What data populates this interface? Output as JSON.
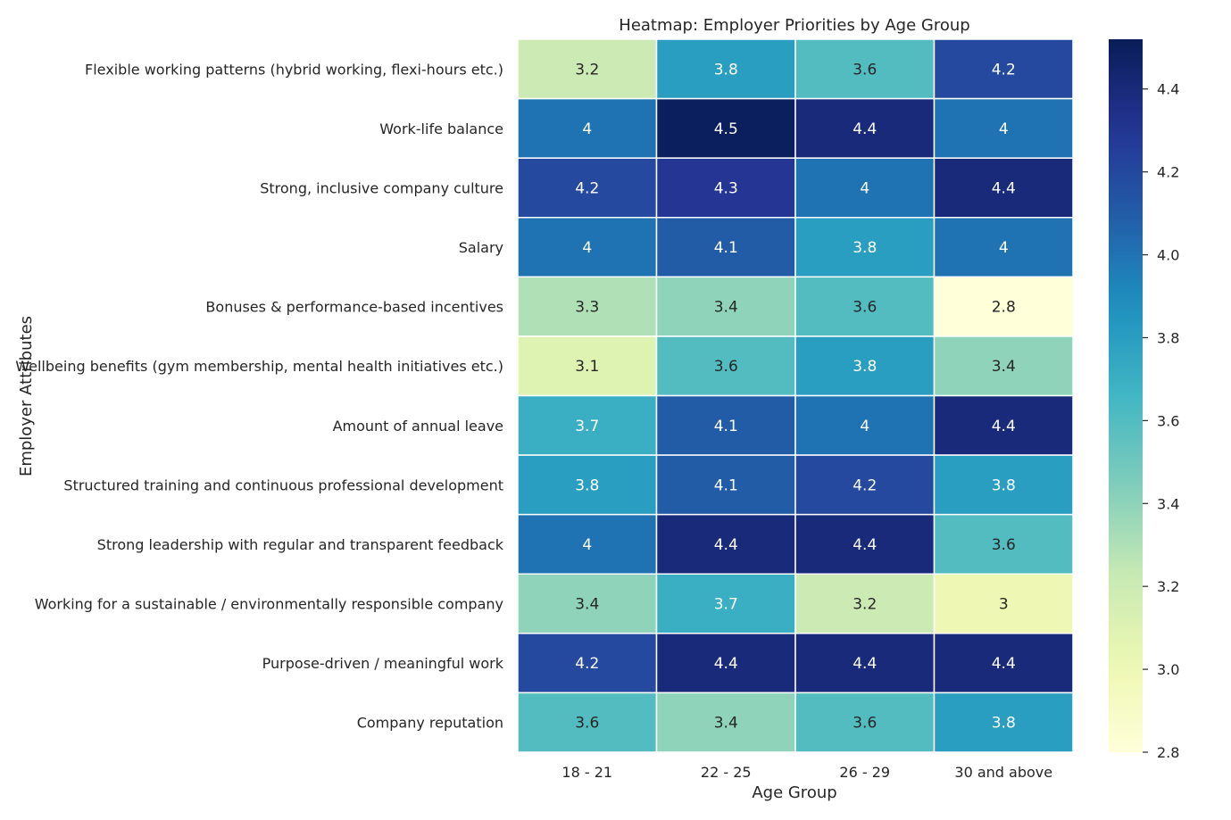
{
  "chart_data": {
    "type": "heatmap",
    "title": "Heatmap: Employer Priorities by Age Group",
    "xlabel": "Age Group",
    "ylabel": "Employer Attributes",
    "columns": [
      "18 - 21",
      "22 - 25",
      "26 - 29",
      "30 and above"
    ],
    "rows": [
      "Flexible working patterns (hybrid working, flexi-hours etc.)",
      "Work-life balance",
      "Strong, inclusive company culture",
      "Salary",
      "Bonuses & performance-based incentives",
      "Wellbeing benefits (gym membership, mental health initiatives etc.)",
      "Amount of annual leave",
      "Structured training and continuous professional development",
      "Strong leadership with regular and transparent feedback",
      "Working for a sustainable / environmentally responsible company",
      "Purpose-driven / meaningful work",
      "Company reputation"
    ],
    "values": [
      [
        3.2,
        3.8,
        3.6,
        4.2
      ],
      [
        4,
        4.5,
        4.4,
        4
      ],
      [
        4.2,
        4.3,
        4,
        4.4
      ],
      [
        4,
        4.1,
        3.8,
        4
      ],
      [
        3.3,
        3.4,
        3.6,
        2.8
      ],
      [
        3.1,
        3.6,
        3.8,
        3.4
      ],
      [
        3.7,
        4.1,
        4,
        4.4
      ],
      [
        3.8,
        4.1,
        4.2,
        3.8
      ],
      [
        4,
        4.4,
        4.4,
        3.6
      ],
      [
        3.4,
        3.7,
        3.2,
        3
      ],
      [
        4.2,
        4.4,
        4.4,
        4.4
      ],
      [
        3.6,
        3.4,
        3.6,
        3.8
      ]
    ],
    "colormap": "YlGnBu",
    "vmin": 2.8,
    "vmax": 4.52,
    "colorbar_ticks": [
      "2.8",
      "3.0",
      "3.2",
      "3.4",
      "3.6",
      "3.8",
      "4.0",
      "4.2",
      "4.4"
    ],
    "annot_light_color": "#ffffff",
    "annot_dark_color": "#262626",
    "cell_border_color": "#ffffff"
  }
}
